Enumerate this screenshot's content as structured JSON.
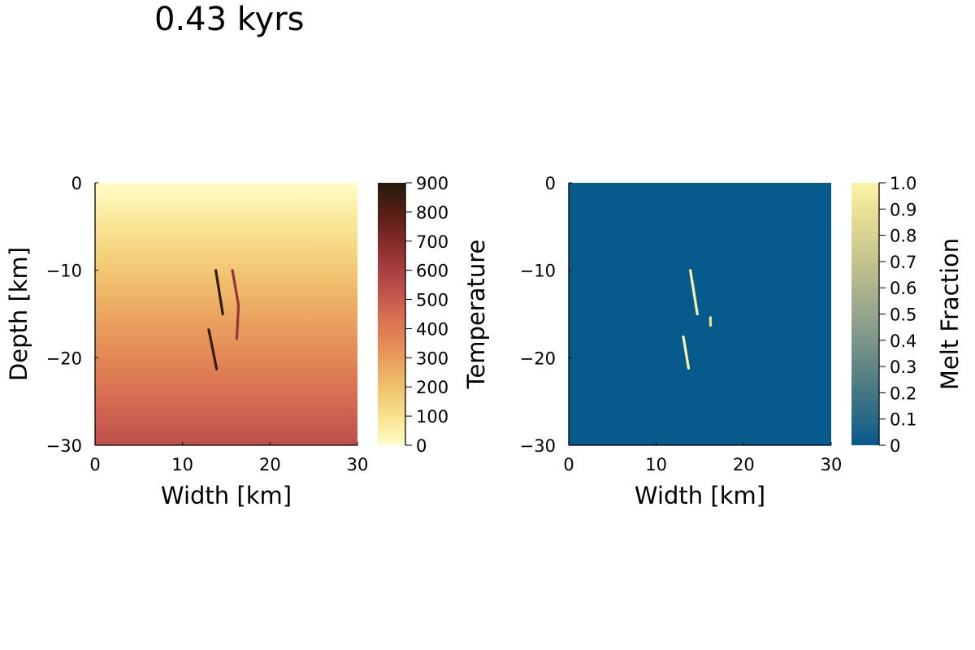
{
  "figure": {
    "title": "0.43 kyrs"
  },
  "chart_data": [
    {
      "type": "heatmap",
      "title": "",
      "xlabel": "Width [km]",
      "ylabel": "Depth [km]",
      "xlim": [
        0,
        30
      ],
      "ylim": [
        -30,
        0
      ],
      "xticks": [
        0,
        10,
        20,
        30
      ],
      "yticks": [
        0,
        -10,
        -20,
        -30
      ],
      "grid": false,
      "background_field": {
        "description_values": "temperature increases linearly with depth",
        "z": [
          0,
          -5,
          -10,
          -15,
          -20,
          -25,
          -30
        ],
        "temperature": [
          0,
          90,
          180,
          270,
          360,
          450,
          540
        ]
      },
      "features": [
        {
          "name": "dike",
          "x": [
            13.8,
            14.6
          ],
          "y": [
            -10,
            -15
          ],
          "temperature": 870
        },
        {
          "name": "dike",
          "x": [
            13.0,
            13.9
          ],
          "y": [
            -16.8,
            -21.3
          ],
          "temperature": 870
        },
        {
          "name": "dike",
          "x": [
            15.7,
            16.4,
            16.2
          ],
          "y": [
            -10,
            -14,
            -17.8
          ],
          "temperature": 650
        }
      ],
      "colorbar": {
        "label": "Temperature",
        "range": [
          0,
          900
        ],
        "ticks": [
          0,
          100,
          200,
          300,
          400,
          500,
          600,
          700,
          800,
          900
        ],
        "colors": [
          "#fffdc9",
          "#f7de86",
          "#eeb867",
          "#e68e57",
          "#d66a52",
          "#b54848",
          "#8d302e",
          "#5c1e18",
          "#241a0c"
        ]
      }
    },
    {
      "type": "heatmap",
      "title": "",
      "xlabel": "Width [km]",
      "ylabel": "",
      "xlim": [
        0,
        30
      ],
      "ylim": [
        -30,
        0
      ],
      "xticks": [
        0,
        10,
        20,
        30
      ],
      "yticks": [
        0,
        -10,
        -20,
        -30
      ],
      "grid": false,
      "background_value": 0,
      "features": [
        {
          "name": "dike",
          "x": [
            13.9,
            14.7
          ],
          "y": [
            -10,
            -15
          ],
          "melt_fraction": 1.0
        },
        {
          "name": "dike",
          "x": [
            13.1,
            13.7
          ],
          "y": [
            -17.6,
            -21.2
          ],
          "melt_fraction": 1.0
        },
        {
          "name": "dike",
          "x": [
            16.2,
            16.2
          ],
          "y": [
            -15.4,
            -16.3
          ],
          "melt_fraction": 0.9
        }
      ],
      "colorbar": {
        "label": "Melt Fraction",
        "range": [
          0,
          1
        ],
        "ticks": [
          "0",
          "0.1",
          "0.2",
          "0.3",
          "0.4",
          "0.5",
          "0.6",
          "0.7",
          "0.8",
          "0.9",
          "1.0"
        ],
        "colors": [
          "#075a8c",
          "#2b6a86",
          "#4a7a84",
          "#6a8b87",
          "#889c8c",
          "#a2ad8d",
          "#bbbe8c",
          "#d3d08f",
          "#e8e195",
          "#fcf4a6"
        ]
      }
    }
  ]
}
